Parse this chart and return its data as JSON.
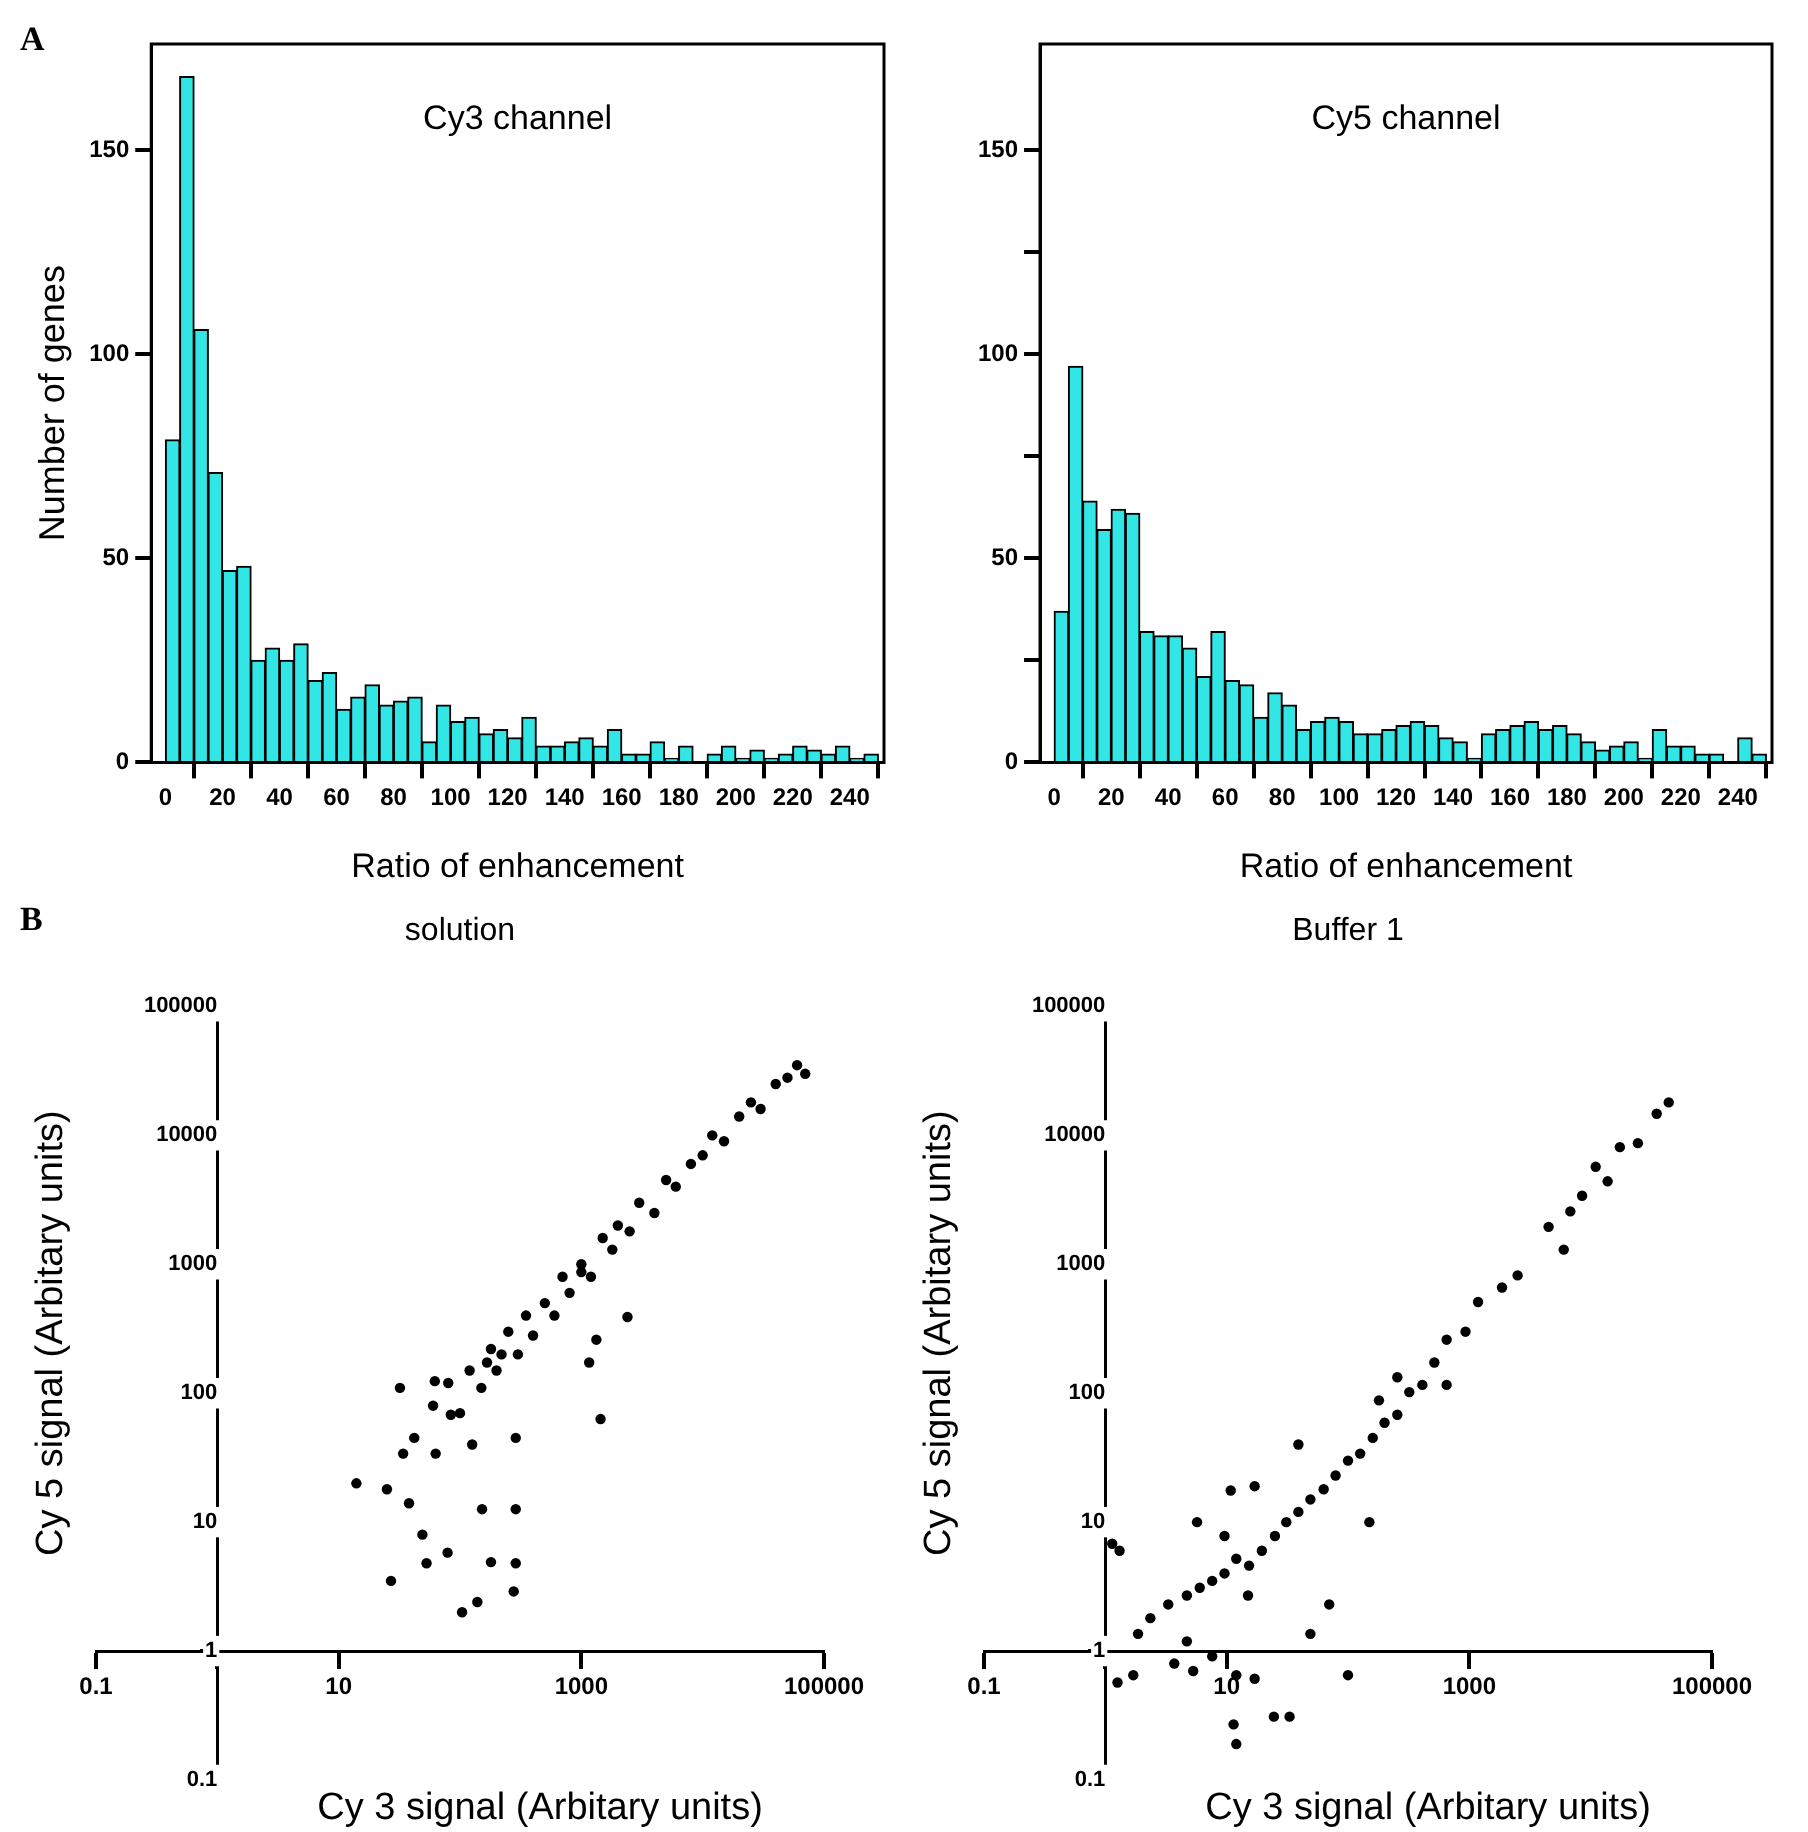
{
  "chart_data": [
    {
      "type": "histogram",
      "title": "Cy3 channel",
      "xlabel": "Ratio of enhancement",
      "ylabel": "Number of genes",
      "annotations": [
        "A"
      ],
      "color": "#33e6e6",
      "bins": [
        0,
        5,
        10,
        15,
        20,
        25,
        30,
        35,
        40,
        45,
        50,
        55,
        60,
        65,
        70,
        75,
        80,
        85,
        90,
        95,
        100,
        105,
        110,
        115,
        120,
        125,
        130,
        135,
        140,
        145,
        150,
        155,
        160,
        165,
        170,
        175,
        180,
        185,
        190,
        195,
        200,
        205,
        210,
        215,
        220,
        225,
        230,
        235,
        240,
        245,
        250
      ],
      "values": [
        79,
        168,
        106,
        71,
        47,
        48,
        25,
        28,
        25,
        29,
        20,
        22,
        13,
        16,
        19,
        14,
        15,
        16,
        5,
        14,
        10,
        11,
        7,
        8,
        6,
        11,
        4,
        4,
        5,
        6,
        4,
        8,
        2,
        2,
        5,
        1,
        4,
        0,
        2,
        4,
        1,
        3,
        1,
        2,
        4,
        3,
        2,
        4,
        1,
        2
      ],
      "xlim": [
        -5,
        252
      ],
      "ylim": [
        0,
        176
      ],
      "xticks": [
        0,
        20,
        40,
        60,
        80,
        100,
        120,
        140,
        160,
        180,
        200,
        220,
        240
      ],
      "yticks": [
        0,
        50,
        100,
        150
      ],
      "grid": false
    },
    {
      "type": "histogram",
      "title": "Cy5 channel",
      "xlabel": "Ratio of enhancement",
      "color": "#33e6e6",
      "bins": [
        0,
        5,
        10,
        15,
        20,
        25,
        30,
        35,
        40,
        45,
        50,
        55,
        60,
        65,
        70,
        75,
        80,
        85,
        90,
        95,
        100,
        105,
        110,
        115,
        120,
        125,
        130,
        135,
        140,
        145,
        150,
        155,
        160,
        165,
        170,
        175,
        180,
        185,
        190,
        195,
        200,
        205,
        210,
        215,
        220,
        225,
        230,
        235,
        240,
        245,
        250
      ],
      "values": [
        37,
        97,
        64,
        57,
        62,
        61,
        32,
        31,
        31,
        28,
        21,
        32,
        20,
        19,
        11,
        17,
        14,
        8,
        10,
        11,
        10,
        7,
        7,
        8,
        9,
        10,
        9,
        6,
        5,
        1,
        7,
        8,
        9,
        10,
        8,
        9,
        7,
        5,
        3,
        4,
        5,
        1,
        8,
        4,
        4,
        2,
        2,
        0,
        6,
        2
      ],
      "xlim": [
        -5,
        252
      ],
      "ylim": [
        0,
        176
      ],
      "xticks": [
        0,
        20,
        40,
        60,
        80,
        100,
        120,
        140,
        160,
        180,
        200,
        220,
        240
      ],
      "yticks": [
        0,
        {
          "value": 25,
          "label": null
        },
        50,
        {
          "value": 75,
          "label": null
        },
        100,
        {
          "value": 125,
          "label": null
        },
        150
      ],
      "grid": false
    },
    {
      "type": "scatter",
      "title": "solution",
      "xlabel": "Cy 3 signal (Arbitary units)",
      "ylabel": "Cy 5 signal (Arbitary units)",
      "annotations": [
        "B"
      ],
      "color": "#000000",
      "marker": "circle",
      "log": "xy",
      "x": [
        14,
        25,
        27,
        32,
        38,
        49,
        53,
        62,
        79,
        104,
        139,
        152,
        180,
        277,
        288,
        288,
        1440,
        34,
        42,
        63,
        84,
        126,
        288,
        167,
        220,
        1160,
        1330,
        2400,
        1000,
        60,
        80,
        100,
        120,
        150,
        180,
        200,
        250,
        300,
        350,
        400,
        500,
        600,
        700,
        800,
        1000,
        1200,
        1500,
        1800,
        2000,
        2500,
        3000,
        4000,
        5000,
        6000,
        8000,
        10000,
        12000,
        15000,
        20000,
        25000,
        30000,
        40000,
        50000,
        60000,
        70000
      ],
      "values": [
        20,
        18,
        3.5,
        110,
        14,
        8,
        4.8,
        124,
        5.8,
        2,
        2.4,
        12.6,
        4.9,
        2.9,
        4.8,
        12.6,
        63,
        34,
        45,
        34,
        68,
        40,
        45,
        173,
        200,
        173,
        260,
        390,
        870,
        80,
        120,
        70,
        150,
        110,
        220,
        150,
        300,
        200,
        400,
        280,
        500,
        400,
        800,
        600,
        1000,
        800,
        1600,
        1300,
        2000,
        1800,
        3000,
        2500,
        4500,
        4000,
        6000,
        7000,
        10000,
        9000,
        14000,
        18000,
        16000,
        25000,
        28000,
        35000,
        30000
      ],
      "xlim": [
        0.1,
        100000
      ],
      "ylim": [
        0.1,
        100000
      ],
      "xticks": [
        0.1,
        {
          "value": 1,
          "label": null
        },
        10,
        1000,
        100000
      ],
      "yticks": [
        0.1,
        1,
        10,
        100,
        1000,
        10000,
        100000
      ],
      "grid": false
    },
    {
      "type": "scatter",
      "title": "Buffer 1",
      "xlabel": "Cy 3 signal (Arbitary units)",
      "ylabel": "Cy 5 signal (Arbitary units)",
      "color": "#000000",
      "marker": "circle",
      "log": "xy",
      "x": [
        44000,
        35000,
        24500,
        17400,
        13800,
        11000,
        8500,
        6800,
        6000,
        4500,
        2500,
        1860,
        1180,
        930,
        650,
        515,
        410,
        320,
        255,
        200,
        160,
        126,
        100,
        79,
        63,
        49,
        39,
        31,
        25,
        19.5,
        15.3,
        12,
        9.6,
        7.6,
        6,
        4.7,
        3.3,
        2.35,
        1.86,
        1.31,
        1.14,
        1.26,
        1.7,
        3.7,
        4.7,
        5.3,
        7.6,
        12,
        12,
        11.4,
        17,
        24.5,
        33,
        100,
        70,
        49,
        150,
        10.8,
        17,
        5.7,
        15,
        9.6,
        39,
        255,
        650,
        180
      ],
      "values": [
        18000,
        14700,
        8700,
        8100,
        4400,
        5700,
        3400,
        2570,
        1300,
        1950,
        820,
        660,
        510,
        300,
        260,
        173,
        116,
        102,
        68,
        59,
        45,
        34,
        30,
        23,
        18,
        15,
        12,
        10,
        7.8,
        6,
        4.6,
        5.2,
        4,
        3.5,
        3.1,
        2.7,
        2.3,
        1.8,
        1.36,
        6,
        6.8,
        0.57,
        0.65,
        0.8,
        1.19,
        0.7,
        0.91,
        0.65,
        0.19,
        0.27,
        0.61,
        0.31,
        0.31,
        0.65,
        2.3,
        1.36,
        10,
        17.6,
        19,
        10,
        2.7,
        7.8,
        40,
        133,
        116,
        88
      ],
      "xlim": [
        0.1,
        100000
      ],
      "ylim": [
        0.1,
        100000
      ],
      "xticks": [
        0.1,
        {
          "value": 1,
          "label": null
        },
        10,
        1000,
        100000
      ],
      "yticks": [
        0.1,
        1,
        10,
        100,
        1000,
        10000,
        100000
      ],
      "grid": false
    }
  ]
}
